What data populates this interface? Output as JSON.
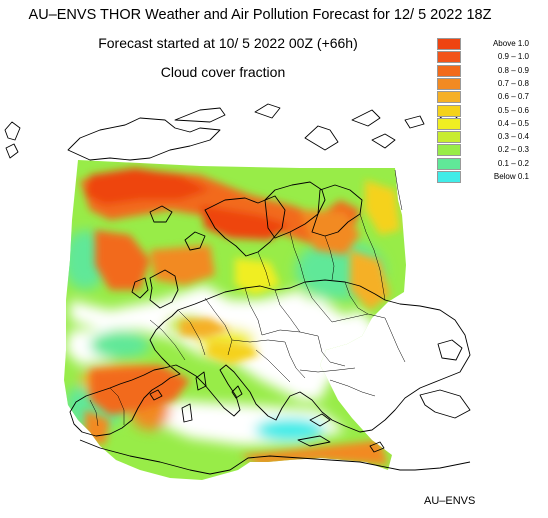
{
  "titles": {
    "main": "AU–ENVS THOR Weather and Air Pollution Forecast for 12/ 5 2022  18Z",
    "started": "Forecast started at 10/ 5 2022  00Z (+66h)",
    "variable": "Cloud cover fraction"
  },
  "legend": [
    {
      "label": "Above   1.0",
      "color": "#ee4411"
    },
    {
      "label": "0.9 – 1.0",
      "color": "#f2541a"
    },
    {
      "label": "0.8 – 0.9",
      "color": "#f26a1a"
    },
    {
      "label": "0.7 – 0.8",
      "color": "#f28a22"
    },
    {
      "label": "0.6 – 0.7",
      "color": "#f5b026"
    },
    {
      "label": "0.5 – 0.6",
      "color": "#f5d21a"
    },
    {
      "label": "0.4 – 0.5",
      "color": "#f0ee22"
    },
    {
      "label": "0.3 – 0.4",
      "color": "#c8ec30"
    },
    {
      "label": "0.2 – 0.3",
      "color": "#98ec48"
    },
    {
      "label": "0.1 – 0.2",
      "color": "#60e898"
    },
    {
      "label": "Below   0.1",
      "color": "#40ece8"
    }
  ],
  "credit": "AU–ENVS"
}
